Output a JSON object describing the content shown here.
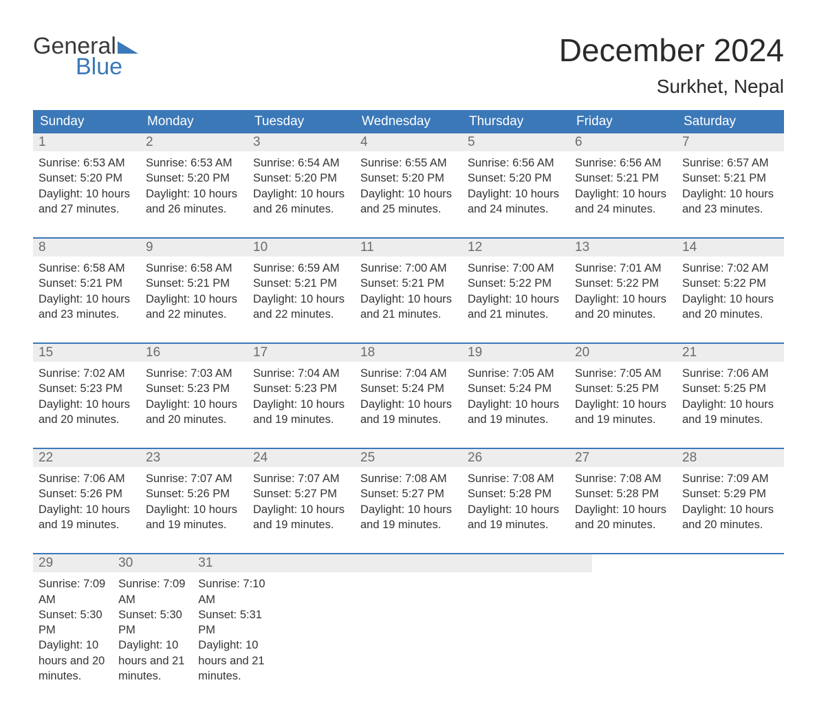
{
  "brand": {
    "word1": "General",
    "word2": "Blue",
    "accent": "#3b78b8"
  },
  "title": "December 2024",
  "location": "Surkhet, Nepal",
  "weekdays": [
    "Sunday",
    "Monday",
    "Tuesday",
    "Wednesday",
    "Thursday",
    "Friday",
    "Saturday"
  ],
  "colors": {
    "header_bg": "#3b78b8",
    "header_text": "#ffffff",
    "daynum_bg": "#ededed",
    "daynum_text": "#6b6b6b",
    "body_text": "#333333",
    "week_border": "#3b78b8",
    "page_bg": "#ffffff"
  },
  "typography": {
    "title_fontsize": 46,
    "location_fontsize": 28,
    "weekday_fontsize": 19,
    "daynum_fontsize": 19,
    "body_fontsize": 16.5
  },
  "weeks": [
    [
      {
        "n": "1",
        "sunrise": "6:53 AM",
        "sunset": "5:20 PM",
        "daylight": "10 hours and 27 minutes."
      },
      {
        "n": "2",
        "sunrise": "6:53 AM",
        "sunset": "5:20 PM",
        "daylight": "10 hours and 26 minutes."
      },
      {
        "n": "3",
        "sunrise": "6:54 AM",
        "sunset": "5:20 PM",
        "daylight": "10 hours and 26 minutes."
      },
      {
        "n": "4",
        "sunrise": "6:55 AM",
        "sunset": "5:20 PM",
        "daylight": "10 hours and 25 minutes."
      },
      {
        "n": "5",
        "sunrise": "6:56 AM",
        "sunset": "5:20 PM",
        "daylight": "10 hours and 24 minutes."
      },
      {
        "n": "6",
        "sunrise": "6:56 AM",
        "sunset": "5:21 PM",
        "daylight": "10 hours and 24 minutes."
      },
      {
        "n": "7",
        "sunrise": "6:57 AM",
        "sunset": "5:21 PM",
        "daylight": "10 hours and 23 minutes."
      }
    ],
    [
      {
        "n": "8",
        "sunrise": "6:58 AM",
        "sunset": "5:21 PM",
        "daylight": "10 hours and 23 minutes."
      },
      {
        "n": "9",
        "sunrise": "6:58 AM",
        "sunset": "5:21 PM",
        "daylight": "10 hours and 22 minutes."
      },
      {
        "n": "10",
        "sunrise": "6:59 AM",
        "sunset": "5:21 PM",
        "daylight": "10 hours and 22 minutes."
      },
      {
        "n": "11",
        "sunrise": "7:00 AM",
        "sunset": "5:21 PM",
        "daylight": "10 hours and 21 minutes."
      },
      {
        "n": "12",
        "sunrise": "7:00 AM",
        "sunset": "5:22 PM",
        "daylight": "10 hours and 21 minutes."
      },
      {
        "n": "13",
        "sunrise": "7:01 AM",
        "sunset": "5:22 PM",
        "daylight": "10 hours and 20 minutes."
      },
      {
        "n": "14",
        "sunrise": "7:02 AM",
        "sunset": "5:22 PM",
        "daylight": "10 hours and 20 minutes."
      }
    ],
    [
      {
        "n": "15",
        "sunrise": "7:02 AM",
        "sunset": "5:23 PM",
        "daylight": "10 hours and 20 minutes."
      },
      {
        "n": "16",
        "sunrise": "7:03 AM",
        "sunset": "5:23 PM",
        "daylight": "10 hours and 20 minutes."
      },
      {
        "n": "17",
        "sunrise": "7:04 AM",
        "sunset": "5:23 PM",
        "daylight": "10 hours and 19 minutes."
      },
      {
        "n": "18",
        "sunrise": "7:04 AM",
        "sunset": "5:24 PM",
        "daylight": "10 hours and 19 minutes."
      },
      {
        "n": "19",
        "sunrise": "7:05 AM",
        "sunset": "5:24 PM",
        "daylight": "10 hours and 19 minutes."
      },
      {
        "n": "20",
        "sunrise": "7:05 AM",
        "sunset": "5:25 PM",
        "daylight": "10 hours and 19 minutes."
      },
      {
        "n": "21",
        "sunrise": "7:06 AM",
        "sunset": "5:25 PM",
        "daylight": "10 hours and 19 minutes."
      }
    ],
    [
      {
        "n": "22",
        "sunrise": "7:06 AM",
        "sunset": "5:26 PM",
        "daylight": "10 hours and 19 minutes."
      },
      {
        "n": "23",
        "sunrise": "7:07 AM",
        "sunset": "5:26 PM",
        "daylight": "10 hours and 19 minutes."
      },
      {
        "n": "24",
        "sunrise": "7:07 AM",
        "sunset": "5:27 PM",
        "daylight": "10 hours and 19 minutes."
      },
      {
        "n": "25",
        "sunrise": "7:08 AM",
        "sunset": "5:27 PM",
        "daylight": "10 hours and 19 minutes."
      },
      {
        "n": "26",
        "sunrise": "7:08 AM",
        "sunset": "5:28 PM",
        "daylight": "10 hours and 19 minutes."
      },
      {
        "n": "27",
        "sunrise": "7:08 AM",
        "sunset": "5:28 PM",
        "daylight": "10 hours and 20 minutes."
      },
      {
        "n": "28",
        "sunrise": "7:09 AM",
        "sunset": "5:29 PM",
        "daylight": "10 hours and 20 minutes."
      }
    ],
    [
      {
        "n": "29",
        "sunrise": "7:09 AM",
        "sunset": "5:30 PM",
        "daylight": "10 hours and 20 minutes."
      },
      {
        "n": "30",
        "sunrise": "7:09 AM",
        "sunset": "5:30 PM",
        "daylight": "10 hours and 21 minutes."
      },
      {
        "n": "31",
        "sunrise": "7:10 AM",
        "sunset": "5:31 PM",
        "daylight": "10 hours and 21 minutes."
      },
      null,
      null,
      null,
      null
    ]
  ],
  "labels": {
    "sunrise": "Sunrise: ",
    "sunset": "Sunset: ",
    "daylight": "Daylight: "
  }
}
